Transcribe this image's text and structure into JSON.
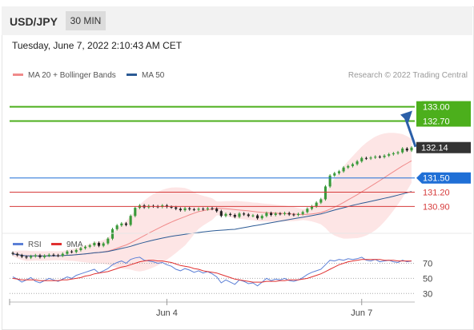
{
  "header": {
    "pair": "USD/JPY",
    "timeframe": "30 MIN"
  },
  "datetime": "Tuesday, June 7, 2022 2:10:43 AM CET",
  "legend": {
    "items": [
      {
        "label": "MA 20 + Bollinger Bands",
        "color": "#f08a8a"
      },
      {
        "label": "MA 50",
        "color": "#2b5a94"
      }
    ],
    "credit": "Research © 2022 Trading Central"
  },
  "rsi_legend": {
    "items": [
      {
        "label": "RSI",
        "color": "#5b7fd6"
      },
      {
        "label": "9MA",
        "color": "#e03030"
      }
    ]
  },
  "chart_data": {
    "type": "candlestick",
    "symbol": "USD/JPY",
    "timeframe": "30 MIN",
    "x_ticks": [
      "Jun 4",
      "Jun 7"
    ],
    "price_ylim": [
      130.4,
      133.5
    ],
    "levels": [
      {
        "label": "133.00",
        "value": 133.0,
        "color": "#4caf1c",
        "kind": "resistance"
      },
      {
        "label": "132.70",
        "value": 132.7,
        "color": "#4caf1c",
        "kind": "resistance"
      },
      {
        "label": "132.14",
        "value": 132.14,
        "color": "#333333",
        "kind": "last"
      },
      {
        "label": "131.50",
        "value": 131.5,
        "color": "#1f6fd6",
        "kind": "pivot"
      },
      {
        "label": "131.20",
        "value": 131.2,
        "color": "#d63a3a",
        "kind": "support"
      },
      {
        "label": "130.90",
        "value": 130.9,
        "color": "#d63a3a",
        "kind": "support"
      }
    ],
    "close": [
      129.9,
      129.87,
      129.84,
      129.82,
      129.85,
      129.87,
      129.83,
      129.86,
      129.88,
      129.87,
      129.86,
      129.9,
      129.95,
      129.94,
      129.98,
      130.02,
      130.05,
      130.08,
      130.13,
      130.07,
      130.12,
      130.22,
      130.42,
      130.5,
      130.54,
      130.51,
      130.7,
      130.87,
      130.92,
      130.88,
      130.91,
      130.9,
      130.89,
      130.92,
      130.89,
      130.88,
      130.85,
      130.82,
      130.86,
      130.84,
      130.83,
      130.85,
      130.84,
      130.86,
      130.85,
      130.8,
      130.7,
      130.74,
      130.72,
      130.68,
      130.75,
      130.73,
      130.7,
      130.71,
      130.65,
      130.7,
      130.76,
      130.72,
      130.75,
      130.74,
      130.76,
      130.73,
      130.72,
      130.74,
      130.78,
      130.85,
      130.9,
      130.98,
      131.05,
      131.32,
      131.55,
      131.6,
      131.64,
      131.72,
      131.75,
      131.79,
      131.85,
      131.92,
      131.91,
      131.93,
      131.95,
      131.94,
      131.97,
      132.0,
      132.02,
      132.04,
      132.12,
      132.08,
      132.14
    ],
    "rsi_ylim": [
      25,
      80
    ],
    "rsi_ticks": [
      70,
      50,
      30
    ],
    "rsi": [
      52,
      49,
      45,
      48,
      51,
      46,
      44,
      47,
      50,
      48,
      46,
      49,
      52,
      50,
      54,
      56,
      58,
      60,
      62,
      57,
      60,
      63,
      68,
      71,
      73,
      70,
      75,
      77,
      78,
      74,
      73,
      72,
      70,
      71,
      68,
      66,
      62,
      60,
      63,
      61,
      58,
      60,
      57,
      59,
      56,
      52,
      44,
      48,
      45,
      42,
      48,
      46,
      43,
      44,
      40,
      45,
      50,
      47,
      49,
      48,
      50,
      47,
      46,
      48,
      51,
      55,
      58,
      60,
      62,
      68,
      74,
      73,
      75,
      74,
      76,
      75,
      76,
      78,
      74,
      73,
      75,
      72,
      73,
      74,
      72,
      71,
      74,
      72,
      73
    ],
    "rsi_ma": [
      50,
      49,
      48,
      48,
      48,
      48,
      47,
      47,
      47,
      47,
      47,
      48,
      48,
      49,
      50,
      51,
      53,
      54,
      56,
      57,
      58,
      59,
      61,
      63,
      65,
      66,
      68,
      70,
      72,
      73,
      74,
      74,
      73,
      73,
      72,
      71,
      69,
      67,
      66,
      65,
      63,
      62,
      60,
      59,
      58,
      57,
      55,
      53,
      51,
      49,
      48,
      47,
      46,
      45,
      45,
      45,
      46,
      46,
      46,
      47,
      47,
      48,
      48,
      48,
      49,
      50,
      52,
      54,
      56,
      59,
      62,
      65,
      68,
      70,
      72,
      73,
      74,
      75,
      75,
      75,
      75,
      75,
      74,
      74,
      74,
      73,
      73,
      73,
      73
    ]
  }
}
